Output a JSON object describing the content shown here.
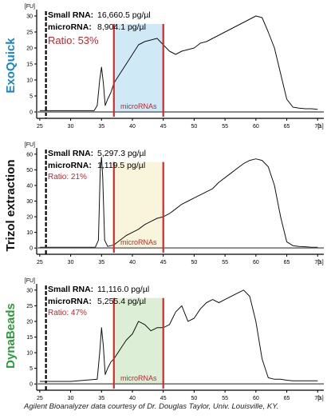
{
  "chart_data": [
    {
      "type": "line",
      "method_label": "ExoQuick",
      "method_color": "#1a86c8",
      "y_unit_label": "[FU]",
      "x_unit_label": "[s]",
      "small_rna_label": "Small RNA:",
      "small_rna_value": "16,660.5 pg/µl",
      "microrna_label": "microRNA:",
      "microrna_value": "8,904.1 pg/µl",
      "ratio_text": "Ratio: 53%",
      "region_label": "microRNAs",
      "region": [
        37,
        45
      ],
      "region_color": "#cfe9f7",
      "xlim": [
        24.5,
        71
      ],
      "xticks": [
        25,
        30,
        35,
        40,
        45,
        50,
        55,
        60,
        65,
        70
      ],
      "ylim": [
        -2,
        32
      ],
      "yticks": [
        0,
        5,
        10,
        15,
        20,
        25,
        30
      ],
      "marker_x": 26,
      "x": [
        25,
        30,
        33.8,
        34.3,
        34.7,
        35,
        35.3,
        35.6,
        36,
        36.5,
        37,
        38,
        39,
        40,
        41,
        42,
        43,
        44,
        45,
        46,
        47,
        48,
        49,
        50,
        51,
        52,
        53,
        54,
        55,
        56,
        57,
        58,
        59,
        60,
        61,
        62,
        63,
        64,
        65,
        66,
        67,
        68,
        69,
        70
      ],
      "y": [
        0.4,
        0.4,
        0.4,
        2,
        10,
        14,
        9,
        2,
        4,
        6,
        9,
        12,
        15,
        18,
        21,
        22,
        22.5,
        23,
        21,
        19,
        18,
        19,
        19.5,
        20,
        21.5,
        22,
        23,
        24,
        25,
        26,
        27,
        28,
        29,
        30,
        29.5,
        25,
        20,
        12,
        4,
        1.5,
        1.2,
        1,
        1,
        0.8
      ]
    },
    {
      "type": "line",
      "method_label": "Trizol extraction",
      "method_color": "#111111",
      "y_unit_label": "[FU]",
      "x_unit_label": "[s]",
      "small_rna_label": "Small RNA:",
      "small_rna_value": "5,297.3 pg/µl",
      "microrna_label": "microRNA:",
      "microrna_value": "1,119.5 pg/µl",
      "ratio_text": "Ratio: 21%",
      "region_label": "microRNAs",
      "region": [
        37,
        45
      ],
      "region_color": "#f8f5dc",
      "xlim": [
        24.5,
        71
      ],
      "xticks": [
        25,
        30,
        35,
        40,
        45,
        50,
        55,
        60,
        65,
        70
      ],
      "ylim": [
        -4,
        64
      ],
      "yticks": [
        0,
        10,
        20,
        30,
        40,
        50,
        60
      ],
      "marker_x": 26,
      "x": [
        25,
        30,
        34,
        34.5,
        34.8,
        35,
        35.2,
        35.5,
        36,
        37,
        38,
        39,
        40,
        41,
        42,
        43,
        44,
        45,
        46,
        47,
        48,
        49,
        50,
        51,
        52,
        53,
        54,
        55,
        56,
        57,
        58,
        59,
        60,
        61,
        62,
        63,
        64,
        65,
        66,
        67,
        68,
        69,
        70
      ],
      "y": [
        0.5,
        0.5,
        0.5,
        5,
        50,
        58,
        45,
        5,
        1,
        2,
        5,
        8,
        10,
        12,
        15,
        17,
        19,
        20,
        22,
        25,
        28,
        30,
        32,
        34,
        36,
        38,
        42,
        45,
        48,
        51,
        54,
        56,
        57,
        56,
        52,
        40,
        20,
        4,
        1.5,
        1,
        0.8,
        0.5,
        0.5
      ]
    },
    {
      "type": "line",
      "method_label": "DynaBeads",
      "method_color": "#2a9a3a",
      "y_unit_label": "[FU]",
      "x_unit_label": "[s]",
      "small_rna_label": "Small RNA:",
      "small_rna_value": "11,116.0 pg/µl",
      "microrna_label": "microRNA:",
      "microrna_value": "5,255.4 pg/µl",
      "ratio_text": "Ratio: 47%",
      "region_label": "microRNAs",
      "region": [
        37,
        45
      ],
      "region_color": "#dcefd6",
      "xlim": [
        24.5,
        71
      ],
      "xticks": [
        25,
        30,
        35,
        40,
        45,
        50,
        55,
        60,
        65,
        70
      ],
      "ylim": [
        -2,
        32
      ],
      "yticks": [
        0,
        5,
        10,
        15,
        20,
        25,
        30
      ],
      "marker_x": 26,
      "x": [
        25,
        30,
        34.3,
        34.7,
        35,
        35.3,
        35.6,
        36,
        36.5,
        37,
        38,
        39,
        40,
        41,
        42,
        43,
        44,
        45,
        46,
        47,
        48,
        49,
        50,
        51,
        52,
        53,
        54,
        55,
        56,
        57,
        58,
        59,
        60,
        61,
        62,
        63,
        64,
        65,
        66,
        67,
        68,
        69,
        70
      ],
      "y": [
        0.8,
        0.8,
        1.5,
        10,
        18,
        12,
        3,
        5,
        7,
        8,
        11,
        14,
        16,
        20,
        19,
        17,
        18,
        18,
        19,
        23,
        25,
        20,
        21,
        24,
        26,
        27,
        26,
        27,
        28,
        29,
        30,
        28,
        20,
        8,
        2,
        1.5,
        1.5,
        1.2,
        1,
        1,
        1,
        1,
        1
      ]
    }
  ],
  "credit": "Agilent Bioanalyzer data courtesy of Dr. Douglas Taylor, Univ. Louisville, KY."
}
